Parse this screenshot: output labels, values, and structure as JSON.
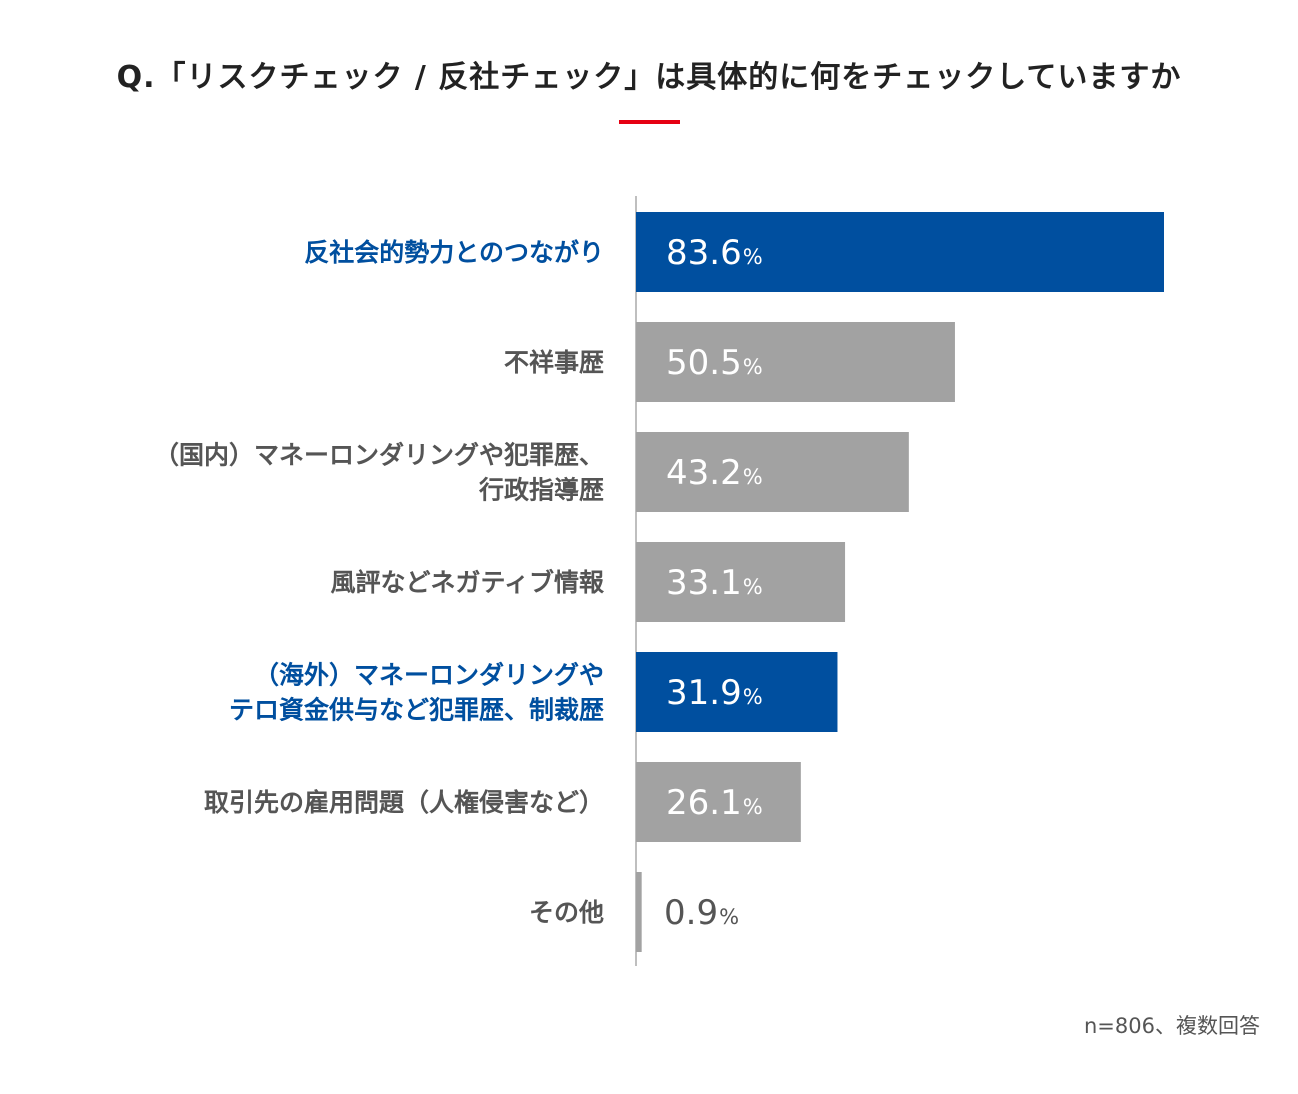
{
  "chart_data": {
    "type": "bar",
    "orientation": "horizontal",
    "title": "Q.「リスクチェック / 反社チェック」は具体的に何をチェックしていますか",
    "categories": [
      [
        "反社会的勢力とのつながり"
      ],
      [
        "不祥事歴"
      ],
      [
        "（国内）マネーロンダリングや犯罪歴、",
        "行政指導歴"
      ],
      [
        "風評などネガティブ情報"
      ],
      [
        "（海外）マネーロンダリングや",
        "テロ資金供与など犯罪歴、制裁歴"
      ],
      [
        "取引先の雇用問題（人権侵害など）"
      ],
      [
        "その他"
      ]
    ],
    "values": [
      83.6,
      50.5,
      43.2,
      33.1,
      31.9,
      26.1,
      0.9
    ],
    "value_labels": [
      "83.6",
      "50.5",
      "43.2",
      "33.1",
      "31.9",
      "26.1",
      "0.9"
    ],
    "unit": "%",
    "highlighted": [
      true,
      false,
      false,
      false,
      true,
      false,
      false
    ],
    "xlim": [
      0,
      100
    ],
    "xlabel": "",
    "ylabel": "",
    "grid": false
  },
  "colors": {
    "highlight": "#004f9f",
    "default_bar": "#a2a2a2",
    "label_default": "#555555",
    "title": "#222222",
    "accent_rule": "#e60012",
    "axis": "#aaaaaa"
  },
  "footnote": "n=806、複数回答"
}
